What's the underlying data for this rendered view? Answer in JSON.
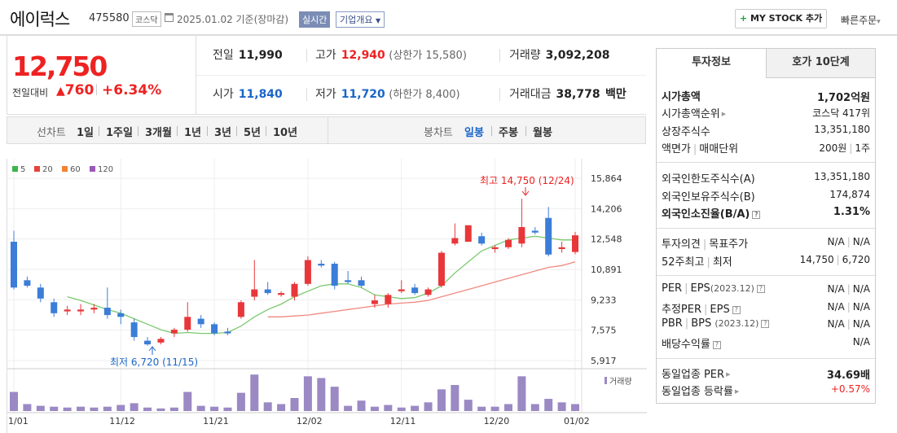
{
  "header": {
    "stock_name": "에이럭스",
    "stock_code": "475580",
    "market": "코스닥",
    "date_text": "2025.01.02 기준(장마감)",
    "realtime_label": "실시간",
    "company_info_label": "기업개요",
    "mystock_label": "MY STOCK 추가",
    "quick_order_label": "빠른주문"
  },
  "price": {
    "current": "12,750",
    "change_label": "전일대비",
    "change_value": "760",
    "change_pct": "+6.34%",
    "up_color": "#e22222"
  },
  "summary": {
    "prev_label": "전일",
    "prev_value": "11,990",
    "high_label": "고가",
    "high_value": "12,940",
    "upper_limit": "(상한가 15,580)",
    "volume_label": "거래량",
    "volume_value": "3,092,208",
    "open_label": "시가",
    "open_value": "11,840",
    "low_label": "저가",
    "low_value": "11,720",
    "lower_limit": "(하한가 8,400)",
    "amount_label": "거래대금",
    "amount_value": "38,778",
    "amount_unit": "백만"
  },
  "period_tabs": {
    "line_label": "선차트",
    "line_tabs": [
      "1일",
      "1주일",
      "3개월",
      "1년",
      "3년",
      "5년",
      "10년"
    ],
    "candle_label": "봉차트",
    "candle_tabs": [
      "일봉",
      "주봉",
      "월봉"
    ],
    "active_candle": "일봉"
  },
  "chart_data": {
    "type": "candlestick",
    "legend": [
      {
        "name": "5",
        "color": "#3cb44b"
      },
      {
        "name": "20",
        "color": "#e6443a"
      },
      {
        "name": "60",
        "color": "#f58231"
      },
      {
        "name": "120",
        "color": "#9b59b6"
      }
    ],
    "x_ticks": [
      "11/01",
      "11/12",
      "11/21",
      "12/02",
      "12/11",
      "12/20",
      "01/02"
    ],
    "y_ticks": [
      "15,864",
      "14,206",
      "12,548",
      "10,891",
      "9,233",
      "7,575",
      "5,917"
    ],
    "ylim": [
      5917,
      15864
    ],
    "annotations": {
      "high": "최고 14,750 (12/24)",
      "low": "최저 6,720 (11/15)"
    },
    "volume_label": "거래량",
    "candles": [
      {
        "o": 12400,
        "h": 13000,
        "l": 9800,
        "c": 9900,
        "v": 22
      },
      {
        "o": 10300,
        "h": 10500,
        "l": 9900,
        "c": 10000,
        "v": 8
      },
      {
        "o": 9900,
        "h": 10100,
        "l": 9100,
        "c": 9300,
        "v": 6
      },
      {
        "o": 9100,
        "h": 9300,
        "l": 8300,
        "c": 8500,
        "v": 5
      },
      {
        "o": 8600,
        "h": 8900,
        "l": 8400,
        "c": 8700,
        "v": 4
      },
      {
        "o": 8600,
        "h": 9000,
        "l": 8400,
        "c": 8700,
        "v": 5
      },
      {
        "o": 8700,
        "h": 9000,
        "l": 8500,
        "c": 8800,
        "v": 4
      },
      {
        "o": 8800,
        "h": 9900,
        "l": 8200,
        "c": 8400,
        "v": 5
      },
      {
        "o": 8500,
        "h": 8700,
        "l": 7900,
        "c": 8300,
        "v": 7
      },
      {
        "o": 8000,
        "h": 8200,
        "l": 7000,
        "c": 7200,
        "v": 9
      },
      {
        "o": 7000,
        "h": 7200,
        "l": 6720,
        "c": 6800,
        "v": 4
      },
      {
        "o": 6900,
        "h": 7200,
        "l": 6800,
        "c": 7100,
        "v": 3
      },
      {
        "o": 7400,
        "h": 7700,
        "l": 7200,
        "c": 7600,
        "v": 4
      },
      {
        "o": 7600,
        "h": 9100,
        "l": 7500,
        "c": 8300,
        "v": 22
      },
      {
        "o": 8200,
        "h": 8400,
        "l": 7700,
        "c": 7900,
        "v": 6
      },
      {
        "o": 7900,
        "h": 8000,
        "l": 7300,
        "c": 7400,
        "v": 5
      },
      {
        "o": 7500,
        "h": 7700,
        "l": 7300,
        "c": 7400,
        "v": 4
      },
      {
        "o": 8300,
        "h": 9200,
        "l": 8200,
        "c": 9100,
        "v": 21
      },
      {
        "o": 9400,
        "h": 11400,
        "l": 9200,
        "c": 9800,
        "v": 42
      },
      {
        "o": 9800,
        "h": 10200,
        "l": 9500,
        "c": 9600,
        "v": 10
      },
      {
        "o": 9500,
        "h": 9700,
        "l": 9400,
        "c": 9600,
        "v": 8
      },
      {
        "o": 9400,
        "h": 10200,
        "l": 9200,
        "c": 10100,
        "v": 15
      },
      {
        "o": 10100,
        "h": 11600,
        "l": 10000,
        "c": 11400,
        "v": 40
      },
      {
        "o": 11200,
        "h": 11400,
        "l": 11000,
        "c": 11100,
        "v": 38
      },
      {
        "o": 11200,
        "h": 11300,
        "l": 9800,
        "c": 10000,
        "v": 28
      },
      {
        "o": 10300,
        "h": 10800,
        "l": 10100,
        "c": 10200,
        "v": 6
      },
      {
        "o": 10300,
        "h": 10500,
        "l": 9900,
        "c": 10000,
        "v": 12
      },
      {
        "o": 9000,
        "h": 9500,
        "l": 8800,
        "c": 9200,
        "v": 5
      },
      {
        "o": 9000,
        "h": 9600,
        "l": 8800,
        "c": 9500,
        "v": 7
      },
      {
        "o": 9700,
        "h": 10300,
        "l": 9600,
        "c": 9800,
        "v": 4
      },
      {
        "o": 9900,
        "h": 10100,
        "l": 9500,
        "c": 9600,
        "v": 6
      },
      {
        "o": 9500,
        "h": 9900,
        "l": 9400,
        "c": 9800,
        "v": 10
      },
      {
        "o": 10000,
        "h": 11900,
        "l": 9900,
        "c": 11800,
        "v": 25
      },
      {
        "o": 12300,
        "h": 13400,
        "l": 12200,
        "c": 12600,
        "v": 30
      },
      {
        "o": 12400,
        "h": 13300,
        "l": 12400,
        "c": 13300,
        "v": 13
      },
      {
        "o": 12700,
        "h": 12900,
        "l": 12200,
        "c": 12300,
        "v": 5
      },
      {
        "o": 12000,
        "h": 12200,
        "l": 11800,
        "c": 12100,
        "v": 5
      },
      {
        "o": 12100,
        "h": 12600,
        "l": 12000,
        "c": 12500,
        "v": 8
      },
      {
        "o": 12300,
        "h": 14750,
        "l": 12100,
        "c": 13200,
        "v": 40
      },
      {
        "o": 13000,
        "h": 13200,
        "l": 12800,
        "c": 12900,
        "v": 8
      },
      {
        "o": 13700,
        "h": 14300,
        "l": 11600,
        "c": 11700,
        "v": 14
      },
      {
        "o": 12000,
        "h": 12400,
        "l": 11800,
        "c": 12100,
        "v": 10
      },
      {
        "o": 11840,
        "h": 12940,
        "l": 11720,
        "c": 12750,
        "v": 8
      }
    ],
    "ma5": [
      null,
      null,
      null,
      null,
      9400,
      9200,
      8950,
      8700,
      8500,
      8200,
      7900,
      7600,
      7400,
      7450,
      7400,
      7400,
      7450,
      7800,
      8300,
      8700,
      9000,
      9400,
      9700,
      10000,
      10100,
      10100,
      9900,
      9500,
      9400,
      9300,
      9350,
      9600,
      10000,
      10700,
      11300,
      11900,
      12200,
      12500,
      12600,
      12700,
      12600,
      12500,
      12500
    ],
    "ma20": [
      null,
      null,
      null,
      null,
      null,
      null,
      null,
      null,
      null,
      null,
      null,
      null,
      null,
      null,
      null,
      null,
      null,
      null,
      null,
      8300,
      8300,
      8350,
      8400,
      8500,
      8600,
      8700,
      8800,
      8900,
      9000,
      9050,
      9100,
      9200,
      9400,
      9600,
      9800,
      10000,
      10200,
      10400,
      10600,
      10800,
      11000,
      11100,
      11300
    ]
  },
  "info_panel": {
    "tab_invest": "투자정보",
    "tab_orderbook": "호가 10단계",
    "market_cap_label": "시가총액",
    "market_cap_value": "1,702억원",
    "market_cap_rank_label": "시가총액순위",
    "market_cap_rank_value": "코스닥 417위",
    "shares_label": "상장주식수",
    "shares_value": "13,351,180",
    "par_label": "액면가",
    "trade_unit_label": "매매단위",
    "par_value": "200원",
    "trade_unit_value": "1주",
    "foreign_limit_label": "외국인한도주식수(A)",
    "foreign_limit_value": "13,351,180",
    "foreign_hold_label": "외국인보유주식수(B)",
    "foreign_hold_value": "174,874",
    "foreign_ratio_label": "외국인소진율(B/A)",
    "foreign_ratio_value": "1.31%",
    "opinion_label": "투자의견",
    "target_label": "목표주가",
    "opinion_value": "N/A",
    "target_value": "N/A",
    "week52_high_label": "52주최고",
    "week52_low_label": "최저",
    "week52_high_value": "14,750",
    "week52_low_value": "6,720",
    "per_label": "PER",
    "eps_label": "EPS",
    "per_eps_year": "(2023.12)",
    "per_value": "N/A",
    "eps_value": "N/A",
    "est_per_label": "추정PER",
    "est_eps_label": "EPS",
    "est_per_value": "N/A",
    "est_eps_value": "N/A",
    "pbr_label": "PBR",
    "bps_label": "BPS",
    "pbr_bps_year": "(2023.12)",
    "pbr_value": "N/A",
    "bps_value": "N/A",
    "dividend_label": "배당수익률",
    "dividend_value": "N/A",
    "sector_per_label": "동일업종 PER",
    "sector_per_value": "34.69배",
    "sector_change_label": "동일업종 등락률",
    "sector_change_value": "+0.57%"
  }
}
